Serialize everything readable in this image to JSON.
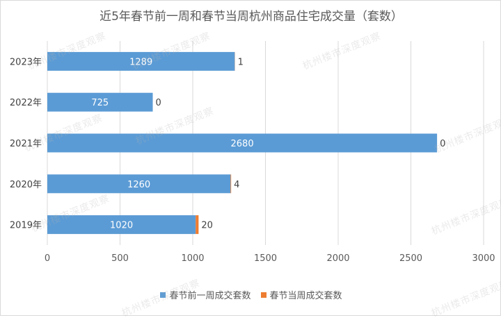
{
  "chart_data": {
    "type": "bar",
    "orientation": "horizontal",
    "stacked": true,
    "title": "近5年春节前一周和春节当周杭州商品住宅成交量（套数）",
    "categories": [
      "2023年",
      "2022年",
      "2021年",
      "2020年",
      "2019年"
    ],
    "series": [
      {
        "name": "春节前一周成交套数",
        "color": "#5b9bd5",
        "values": [
          1289,
          725,
          2680,
          1260,
          1020
        ],
        "labels": [
          "1289",
          "725",
          "2680",
          "1260",
          "1020"
        ]
      },
      {
        "name": "春节当周成交套数",
        "color": "#ed7d31",
        "values": [
          1,
          0,
          0,
          4,
          20
        ],
        "labels": [
          "1",
          "0",
          "0",
          "4",
          "20"
        ]
      }
    ],
    "xlim": [
      0,
      3000
    ],
    "xticks": [
      0,
      500,
      1000,
      1500,
      2000,
      2500,
      3000
    ],
    "xtick_labels": [
      "0",
      "500",
      "1000",
      "1500",
      "2000",
      "2500",
      "3000"
    ],
    "grid": true,
    "legend_position": "bottom"
  },
  "watermark": {
    "text": "杭州楼市深度观察"
  }
}
